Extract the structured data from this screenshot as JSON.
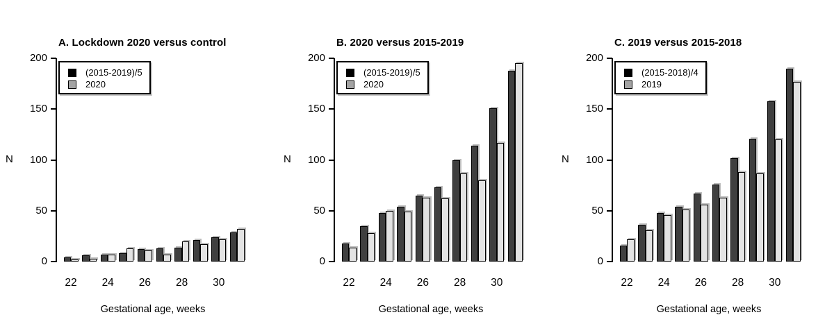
{
  "chart_data": [
    {
      "type": "bar",
      "title": "A. Lockdown 2020 versus control",
      "xlabel": "Gestational age, weeks",
      "ylabel": "N",
      "ylim": [
        0,
        200
      ],
      "yticks": [
        0,
        50,
        100,
        150,
        200
      ],
      "grid": false,
      "legend_position": "top-left",
      "categories": [
        22,
        23,
        24,
        25,
        26,
        27,
        28,
        29,
        30,
        31
      ],
      "xtick_labels": [
        "22",
        "24",
        "26",
        "28",
        "30"
      ],
      "series": [
        {
          "name": "(2015-2019)/5",
          "values": [
            4,
            6,
            7,
            8,
            12,
            13,
            14,
            21,
            24,
            29
          ]
        },
        {
          "name": "2020",
          "values": [
            2,
            3,
            7,
            13,
            11,
            7,
            20,
            17,
            22,
            32
          ]
        }
      ]
    },
    {
      "type": "bar",
      "title": "B. 2020 versus 2015-2019",
      "xlabel": "Gestational age, weeks",
      "ylabel": "N",
      "ylim": [
        0,
        200
      ],
      "yticks": [
        0,
        50,
        100,
        150,
        200
      ],
      "grid": false,
      "legend_position": "top-left",
      "categories": [
        22,
        23,
        24,
        25,
        26,
        27,
        28,
        29,
        30,
        31
      ],
      "xtick_labels": [
        "22",
        "24",
        "26",
        "28",
        "30"
      ],
      "series": [
        {
          "name": "(2015-2019)/5",
          "values": [
            18,
            35,
            48,
            54,
            65,
            73,
            100,
            114,
            151,
            188
          ]
        },
        {
          "name": "2020",
          "values": [
            14,
            28,
            50,
            49,
            63,
            62,
            87,
            80,
            117,
            195
          ]
        }
      ]
    },
    {
      "type": "bar",
      "title": "C. 2019 versus 2015-2018",
      "xlabel": "Gestational age, weeks",
      "ylabel": "N",
      "ylim": [
        0,
        200
      ],
      "yticks": [
        0,
        50,
        100,
        150,
        200
      ],
      "grid": false,
      "legend_position": "top-left",
      "categories": [
        22,
        23,
        24,
        25,
        26,
        27,
        28,
        29,
        30,
        31
      ],
      "xtick_labels": [
        "22",
        "24",
        "26",
        "28",
        "30"
      ],
      "series": [
        {
          "name": "(2015-2018)/4",
          "values": [
            16,
            36,
            48,
            54,
            67,
            76,
            102,
            121,
            158,
            190
          ]
        },
        {
          "name": "2019",
          "values": [
            22,
            31,
            46,
            51,
            56,
            63,
            88,
            87,
            120,
            177
          ]
        }
      ]
    }
  ],
  "colors": {
    "series1_fill": "#3f3f3f",
    "series2_fill": "#e3e3e3",
    "bar_border": "#000000",
    "legend_swatch1": "#000000",
    "legend_swatch2": "#a3a3a3",
    "background": "#ffffff",
    "text": "#000000"
  }
}
